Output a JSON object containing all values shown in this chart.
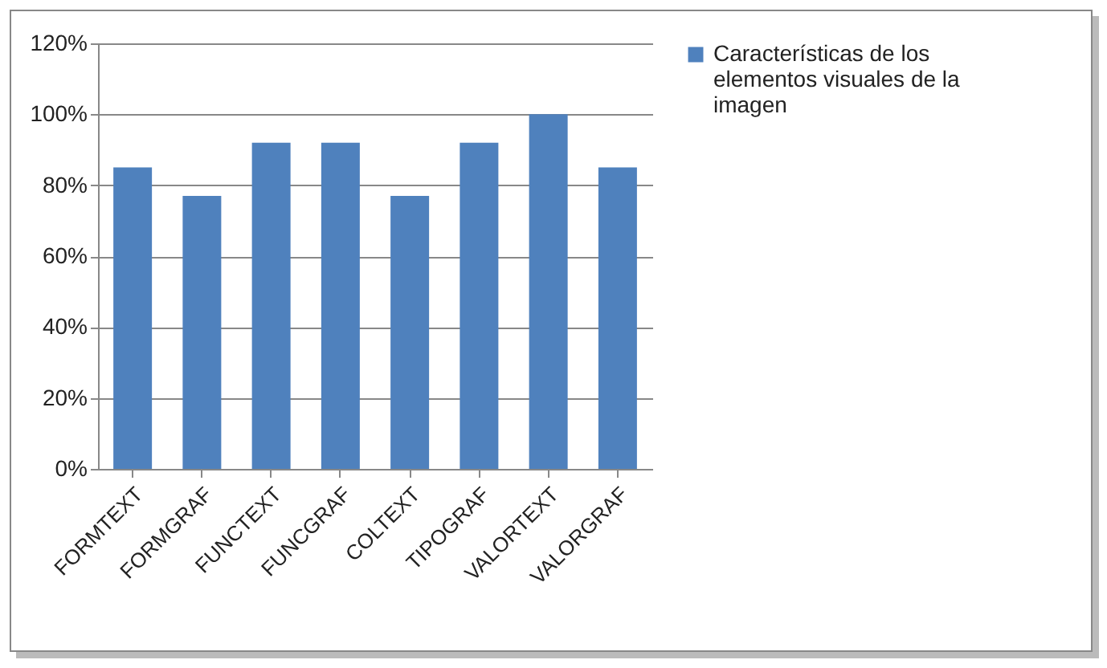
{
  "chart_data": {
    "type": "bar",
    "categories": [
      "FORMTEXT",
      "FORMGRAF",
      "FUNCTEXT",
      "FUNCGRAF",
      "COLTEXT",
      "TIPOGRAF",
      "VALORTEXT",
      "VALORGRAF"
    ],
    "series": [
      {
        "name": "Características de los elementos visuales de la imagen",
        "color": "#4f81bd",
        "values": [
          85,
          77,
          92,
          92,
          77,
          92,
          100,
          85
        ]
      }
    ],
    "ylim": [
      0,
      120
    ],
    "yticks": [
      {
        "value": 0,
        "label": "0%"
      },
      {
        "value": 20,
        "label": "20%"
      },
      {
        "value": 40,
        "label": "40%"
      },
      {
        "value": 60,
        "label": "60%"
      },
      {
        "value": 80,
        "label": "80%"
      },
      {
        "value": 100,
        "label": "100%"
      },
      {
        "value": 120,
        "label": "120%"
      }
    ],
    "grid": "y",
    "legend": "right"
  }
}
